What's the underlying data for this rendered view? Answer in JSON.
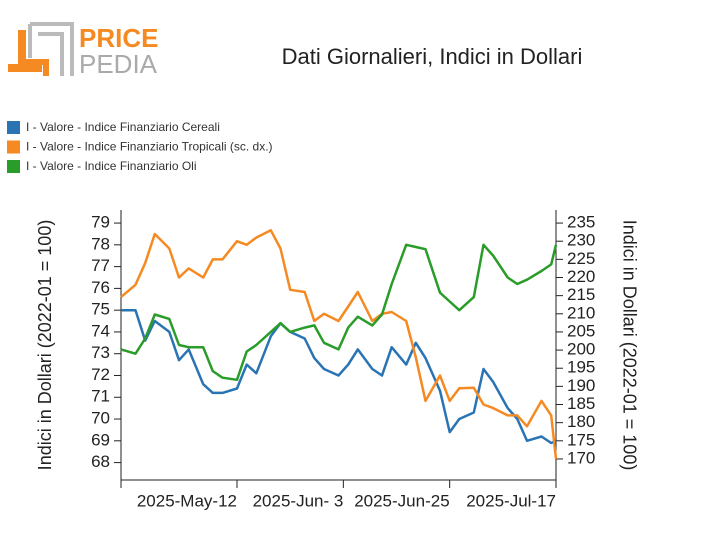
{
  "logo": {
    "part1": "PRICE",
    "part2": "PEDIA"
  },
  "chart_data": {
    "type": "line",
    "title": "Dati Giornalieri, Indici in Dollari",
    "ylabel": "Indici in Dollari (2022-01 = 100)",
    "y2label": "Indici in Dollari (2022-01 = 100)",
    "x": [
      "2025-04-18",
      "2025-04-21",
      "2025-04-23",
      "2025-04-25",
      "2025-04-28",
      "2025-04-30",
      "2025-05-02",
      "2025-05-05",
      "2025-05-07",
      "2025-05-09",
      "2025-05-12",
      "2025-05-14",
      "2025-05-16",
      "2025-05-19",
      "2025-05-21",
      "2025-05-23",
      "2025-05-26",
      "2025-05-28",
      "2025-05-30",
      "2025-06-02",
      "2025-06-04",
      "2025-06-06",
      "2025-06-09",
      "2025-06-11",
      "2025-06-13",
      "2025-06-16",
      "2025-06-18",
      "2025-06-20",
      "2025-06-23",
      "2025-06-25",
      "2025-06-27",
      "2025-06-30",
      "2025-07-02",
      "2025-07-04",
      "2025-07-07",
      "2025-07-09",
      "2025-07-11",
      "2025-07-14",
      "2025-07-16",
      "2025-07-17"
    ],
    "xlim": [
      "2025-04-18",
      "2025-07-17"
    ],
    "xticks": [
      {
        "value": "2025-05-12",
        "label": "2025-May-12"
      },
      {
        "value": "2025-06-03",
        "label": "2025-Jun- 3"
      },
      {
        "value": "2025-06-25",
        "label": "2025-Jun-25"
      },
      {
        "value": "2025-07-17",
        "label": "2025-Jul-17"
      }
    ],
    "ylim": [
      67.2,
      79.6
    ],
    "yticks": [
      68,
      69,
      70,
      71,
      72,
      73,
      74,
      75,
      76,
      77,
      78,
      79
    ],
    "y2lim": [
      164.2,
      238.6
    ],
    "y2ticks": [
      170,
      175,
      180,
      185,
      190,
      195,
      200,
      205,
      210,
      215,
      220,
      225,
      230,
      235
    ],
    "series": [
      {
        "name": "I - Valore - Indice Finanziario Cereali",
        "color": "#2a74b4",
        "values": [
          75.0,
          75.0,
          73.6,
          74.5,
          74.0,
          72.7,
          73.2,
          71.6,
          71.2,
          71.2,
          71.4,
          72.5,
          72.1,
          73.8,
          74.4,
          74.0,
          73.7,
          72.8,
          72.3,
          72.0,
          72.5,
          73.2,
          72.3,
          72.0,
          73.3,
          72.5,
          73.5,
          72.8,
          71.3,
          69.4,
          70.0,
          70.3,
          72.3,
          71.7,
          70.5,
          70.0,
          69.0,
          69.2,
          68.9,
          69.0
        ]
      },
      {
        "name": "I - Valore - Indice Finanziario Tropicali (sc. dx.)",
        "color": "#f58a22",
        "axis": "y2",
        "values": [
          214.6,
          218,
          224,
          232,
          228,
          220,
          222.5,
          220,
          225,
          225,
          230,
          229,
          231,
          233,
          228,
          216.6,
          216,
          208,
          210,
          208,
          212,
          216,
          208,
          210,
          210.5,
          208,
          198,
          186,
          193,
          186,
          189.5,
          189.6,
          185,
          184,
          182,
          182,
          179,
          186,
          182,
          170
        ]
      },
      {
        "name": "I - Valore - Indice Finanziario Oli",
        "color": "#2a9c2a",
        "values": [
          73.2,
          73.0,
          73.7,
          74.8,
          74.6,
          73.4,
          73.3,
          73.3,
          72.2,
          71.9,
          71.8,
          73.1,
          73.4,
          74.0,
          74.4,
          74.0,
          74.2,
          74.3,
          73.5,
          73.2,
          74.2,
          74.7,
          74.3,
          74.8,
          76.2,
          78.0,
          77.9,
          77.8,
          75.8,
          75.4,
          75.0,
          75.6,
          78.0,
          77.5,
          76.5,
          76.2,
          76.4,
          76.8,
          77.1,
          78.0
        ]
      }
    ]
  }
}
